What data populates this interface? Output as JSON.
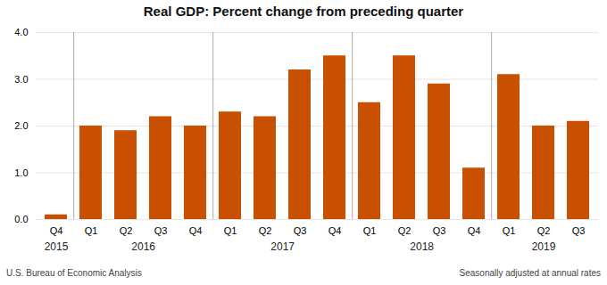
{
  "chart_data": {
    "type": "bar",
    "title": "Real GDP:  Percent change from preceding quarter",
    "categories": [
      "Q4",
      "Q1",
      "Q2",
      "Q3",
      "Q4",
      "Q1",
      "Q2",
      "Q3",
      "Q4",
      "Q1",
      "Q2",
      "Q3",
      "Q4",
      "Q1",
      "Q2",
      "Q3"
    ],
    "values": [
      0.1,
      2.0,
      1.9,
      2.2,
      2.0,
      2.3,
      2.2,
      3.2,
      3.5,
      2.5,
      3.5,
      2.9,
      1.1,
      3.1,
      2.0,
      2.1
    ],
    "color": "#C85000",
    "ylim": [
      0,
      4.0
    ],
    "yticks": [
      0,
      1,
      2,
      3,
      4
    ],
    "grid": true,
    "x_groups": [
      {
        "label": "2015",
        "first": 0,
        "last": 0
      },
      {
        "label": "2016",
        "first": 1,
        "last": 4
      },
      {
        "label": "2017",
        "first": 5,
        "last": 8
      },
      {
        "label": "2018",
        "first": 9,
        "last": 12
      },
      {
        "label": "2019",
        "first": 13,
        "last": 15
      }
    ],
    "source": "U.S. Bureau of Economic Analysis",
    "note": "Seasonally adjusted at annual rates"
  }
}
